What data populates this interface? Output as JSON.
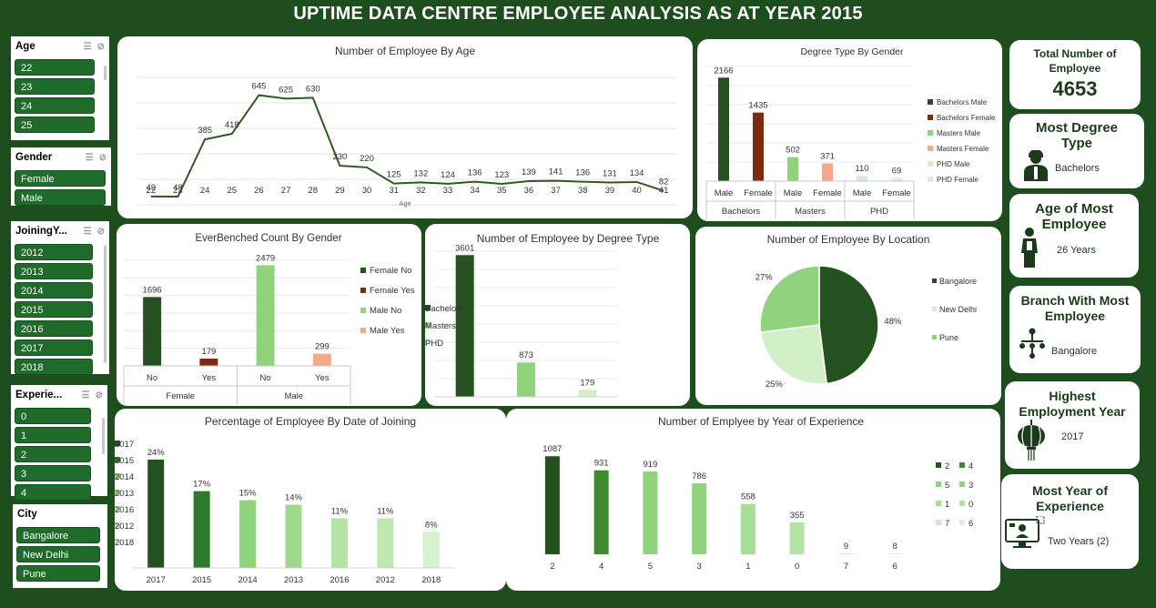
{
  "dashboard": {
    "title": "UPTIME DATA CENTRE EMPLOYEE ANALYSIS AS AT YEAR 2015"
  },
  "colors": {
    "dark": "#25501f",
    "mid": "#3d8b2e",
    "light": "#8fd47c",
    "pale": "#c6ecbb",
    "rust": "#7a2b10",
    "salmon": "#f5a88a",
    "palepink": "#fbe0d4"
  },
  "slicers": {
    "age": {
      "title": "Age",
      "items": [
        "22",
        "23",
        "24",
        "25"
      ]
    },
    "gender": {
      "title": "Gender",
      "items": [
        "Female",
        "Male"
      ]
    },
    "joining": {
      "title": "JoiningY...",
      "items": [
        "2012",
        "2013",
        "2014",
        "2015",
        "2016",
        "2017",
        "2018"
      ]
    },
    "experience": {
      "title": "Experie...",
      "items": [
        "0",
        "1",
        "2",
        "3",
        "4"
      ]
    },
    "city": {
      "title": "City",
      "items": [
        "Bangalore",
        "New Delhi",
        "Pune"
      ]
    }
  },
  "kpis": {
    "total": {
      "title": "Total Number of Employee",
      "value": "4653"
    },
    "degree": {
      "title": "Most Degree Type",
      "value": "Bachelors"
    },
    "age": {
      "title": "Age of Most Employee",
      "value": "26 Years"
    },
    "branch": {
      "title": "Branch With Most Employee",
      "value": "Bangalore"
    },
    "year": {
      "title": "Highest Employment Year",
      "value": "2017"
    },
    "experience": {
      "title": "Most Year of Experience",
      "value": "Two Years (2)"
    }
  },
  "chart_data": [
    {
      "id": "by_age",
      "type": "line",
      "title": "Number of Employee By Age",
      "xlabel": "Age",
      "x": [
        "22",
        "23",
        "24",
        "25",
        "26",
        "27",
        "28",
        "29",
        "30",
        "31",
        "32",
        "33",
        "34",
        "35",
        "36",
        "37",
        "38",
        "39",
        "40",
        "41"
      ],
      "values": [
        49,
        48,
        385,
        418,
        645,
        625,
        630,
        230,
        220,
        125,
        132,
        124,
        136,
        123,
        139,
        141,
        136,
        131,
        134,
        82
      ],
      "ylim": [
        0,
        750
      ]
    },
    {
      "id": "degree_gender",
      "type": "bar",
      "title": "Degree Type By Gender",
      "groups": [
        "Bachelors",
        "Masters",
        "PHD"
      ],
      "categories": [
        "Male",
        "Female"
      ],
      "series": [
        {
          "name": "Bachelors Male",
          "group": 0,
          "cat": 0,
          "value": 2166,
          "color": "#25501f"
        },
        {
          "name": "Bachelors Female",
          "group": 0,
          "cat": 1,
          "value": 1435,
          "color": "#7a2b10"
        },
        {
          "name": "Masters Male",
          "group": 1,
          "cat": 0,
          "value": 502,
          "color": "#8fd47c"
        },
        {
          "name": "Masters Female",
          "group": 1,
          "cat": 1,
          "value": 371,
          "color": "#f5a88a"
        },
        {
          "name": "PHD Male",
          "group": 2,
          "cat": 0,
          "value": 110,
          "color": "#d2f0c8"
        },
        {
          "name": "PHD Female",
          "group": 2,
          "cat": 1,
          "value": 69,
          "color": "#fbe0d4"
        }
      ],
      "ylim": [
        0,
        2400
      ]
    },
    {
      "id": "benched",
      "type": "bar",
      "title": "EverBenched Count By Gender",
      "groups": [
        "Female",
        "Male"
      ],
      "categories": [
        "No",
        "Yes"
      ],
      "series": [
        {
          "name": "Female No",
          "group": 0,
          "cat": 0,
          "value": 1696,
          "color": "#25501f"
        },
        {
          "name": "Female Yes",
          "group": 0,
          "cat": 1,
          "value": 179,
          "color": "#7a2b10"
        },
        {
          "name": "Male No",
          "group": 1,
          "cat": 0,
          "value": 2479,
          "color": "#8fd47c"
        },
        {
          "name": "Male Yes",
          "group": 1,
          "cat": 1,
          "value": 299,
          "color": "#f5a88a"
        }
      ],
      "ylim": [
        0,
        2600
      ]
    },
    {
      "id": "by_degree",
      "type": "bar",
      "title": "Number of Employee by Degree Type",
      "categories": [
        "Bachelors",
        "Masters",
        "PHD"
      ],
      "values": [
        3601,
        873,
        179
      ],
      "colors": [
        "#25501f",
        "#8fd47c",
        "#d2f0c8"
      ],
      "ylim": [
        0,
        3700
      ]
    },
    {
      "id": "by_location",
      "type": "pie",
      "title": "Number of Employee By Location",
      "categories": [
        "Bangalore",
        "New Delhi",
        "Pune"
      ],
      "values": [
        48,
        25,
        27
      ],
      "labels": [
        "48%",
        "25%",
        "27%"
      ],
      "colors": [
        "#25501f",
        "#d2f0c8",
        "#8fd47c"
      ]
    },
    {
      "id": "by_joining",
      "type": "bar",
      "title": "Percentage of Employee By Date of Joining",
      "categories": [
        "2017",
        "2015",
        "2014",
        "2013",
        "2016",
        "2012",
        "2018"
      ],
      "values": [
        24,
        17,
        15,
        14,
        11,
        11,
        8
      ],
      "labels": [
        "24%",
        "17%",
        "15%",
        "14%",
        "11%",
        "11%",
        "8%"
      ],
      "colors": [
        "#25501f",
        "#2f7a2a",
        "#8fd47c",
        "#9ed98c",
        "#b4e3a6",
        "#bde8b0",
        "#d8f2cf"
      ],
      "ylim": [
        0,
        26
      ]
    },
    {
      "id": "by_experience",
      "type": "bar",
      "title": "Number of Emplyee by Year of Experience",
      "categories": [
        "2",
        "4",
        "5",
        "3",
        "1",
        "0",
        "7",
        "6"
      ],
      "values": [
        1087,
        931,
        919,
        786,
        558,
        355,
        9,
        8
      ],
      "colors": [
        "#25501f",
        "#3d8b2e",
        "#8fd47c",
        "#8fd47c",
        "#a8dd98",
        "#b4e3a6",
        "#c6ecbb",
        "#d8f2cf"
      ],
      "ylim": [
        0,
        1150
      ]
    }
  ]
}
